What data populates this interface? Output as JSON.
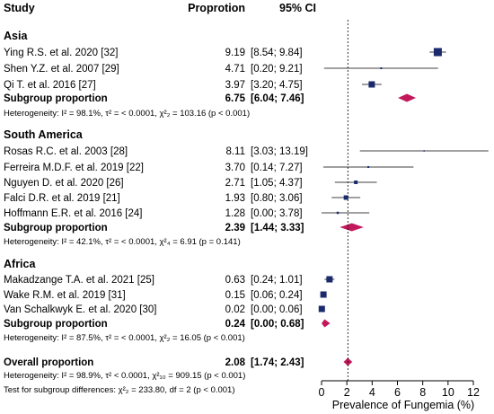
{
  "chart_data": {
    "type": "forest",
    "headers": {
      "study": "Study",
      "proportion": "Proprotion",
      "ci": "95% CI"
    },
    "xlabel": "Prevalence of Fungemia (%)",
    "xlim": [
      0,
      12
    ],
    "xticks": [
      "0",
      "2",
      "4",
      "6",
      "8",
      "10",
      "12"
    ],
    "reference_line": 2.08,
    "colors": {
      "asia": "#1a2a6c",
      "south_america": "#1a2a6c",
      "africa": "#1a2a6c",
      "diamond": "#c2185b",
      "line": "#000000"
    },
    "groups": [
      {
        "name": "Asia",
        "studies": [
          {
            "label": "Ying R.S. et al. 2020 [32]",
            "est_text": "9.19",
            "ci_text": "[8.54; 9.84]",
            "est": 9.19,
            "lo": 8.54,
            "hi": 9.84,
            "w": 9
          },
          {
            "label": "Shen Y.Z. et al. 2007 [29]",
            "est_text": "4.71",
            "ci_text": "[0.20; 9.21]",
            "est": 4.71,
            "lo": 0.2,
            "hi": 9.21,
            "w": 2
          },
          {
            "label": "Qi T. et al. 2016 [27]",
            "est_text": "3.97",
            "ci_text": "[3.20; 4.75]",
            "est": 3.97,
            "lo": 3.2,
            "hi": 4.75,
            "w": 7
          }
        ],
        "subgroup": {
          "label": "Subgroup proportion",
          "est_text": "6.75",
          "ci_text": "[6.04; 7.46]",
          "est": 6.75,
          "lo": 6.04,
          "hi": 7.46
        },
        "het_text": "Heterogeneity: I² = 98.1%, τ² = < 0.0001, χ²₂ = 103.16 (p < 0.001)"
      },
      {
        "name": "South America",
        "studies": [
          {
            "label": "Rosas R.C. et al. 2003 [28]",
            "est_text": "8.11",
            "ci_text": "[3.03; 13.19]",
            "est": 8.11,
            "lo": 3.03,
            "hi": 13.19,
            "w": 1.5
          },
          {
            "label": "Ferreira M.D.F.  et al. 2019 [22]",
            "est_text": "3.70",
            "ci_text": "[0.14; 7.27]",
            "est": 3.7,
            "lo": 0.14,
            "hi": 7.27,
            "w": 2
          },
          {
            "label": "Nguyen D. et al.  2020 [26]",
            "est_text": "2.71",
            "ci_text": "[1.05; 4.37]",
            "est": 2.71,
            "lo": 1.05,
            "hi": 4.37,
            "w": 4
          },
          {
            "label": "Falci D.R. et al.  2019 [21]",
            "est_text": "1.93",
            "ci_text": "[0.80; 3.06]",
            "est": 1.93,
            "lo": 0.8,
            "hi": 3.06,
            "w": 5
          },
          {
            "label": "Hoffmann E.R. et al. 2016 [24]",
            "est_text": "1.28",
            "ci_text": "[0.00; 3.78]",
            "est": 1.28,
            "lo": 0.0,
            "hi": 3.78,
            "w": 2.5
          }
        ],
        "subgroup": {
          "label": "Subgroup proportion",
          "est_text": "2.39",
          "ci_text": "[1.44; 3.33]",
          "est": 2.39,
          "lo": 1.44,
          "hi": 3.33
        },
        "het_text": "Heterogeneity: I² = 42.1%, τ² = < 0.0001, χ²₄ = 6.91 (p = 0.141)"
      },
      {
        "name": "Africa",
        "studies": [
          {
            "label": "Makadzange T.A. et al. 2021 [25]",
            "est_text": "0.63",
            "ci_text": "[0.24; 1.01]",
            "est": 0.63,
            "lo": 0.24,
            "hi": 1.01,
            "w": 7
          },
          {
            "label": "Wake R.M. et al. 2019 [31]",
            "est_text": "0.15",
            "ci_text": "[0.06; 0.24]",
            "est": 0.15,
            "lo": 0.06,
            "hi": 0.24,
            "w": 7
          },
          {
            "label": "Van Schalkwyk E. et al. 2020 [30]",
            "est_text": "0.02",
            "ci_text": "[0.00; 0.06]",
            "est": 0.02,
            "lo": 0.0,
            "hi": 0.06,
            "w": 7
          }
        ],
        "subgroup": {
          "label": "Subgroup proportion",
          "est_text": "0.24",
          "ci_text": "[0.00; 0.68]",
          "est": 0.24,
          "lo": 0.0,
          "hi": 0.68
        },
        "het_text": "Heterogeneity: I² = 87.5%, τ² = < 0.0001, χ²₂ = 16.05 (p < 0.001)"
      }
    ],
    "overall": {
      "label": "Overall proportion",
      "est_text": "2.08",
      "ci_text": "[1.74; 2.43]",
      "est": 2.08,
      "lo": 1.74,
      "hi": 2.43,
      "het_text": "Heterogeneity: I² = 98.9%, τ² < 0.0001, χ²₁₀ = 909.15 (p < 0.001)",
      "test_text": "Test for subgroup differences: χ²₂ = 233.80, df = 2 (p < 0.001)"
    }
  }
}
